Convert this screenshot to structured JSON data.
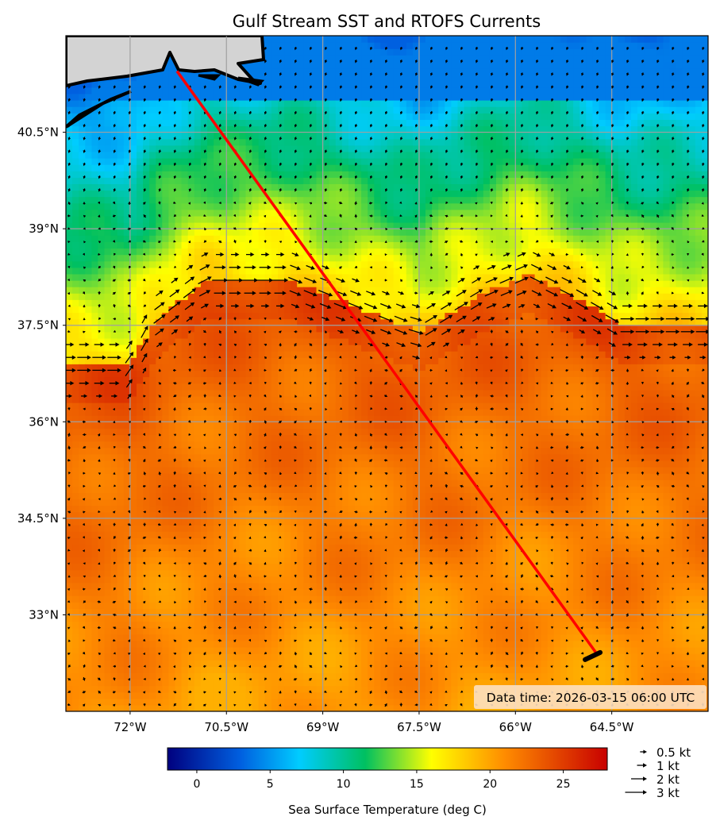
{
  "title": "Gulf Stream SST and RTOFS Currents",
  "map": {
    "lon_range": [
      -73.0,
      -63.0
    ],
    "lat_range": [
      31.5,
      42.0
    ],
    "lon_ticks": [
      {
        "value": -72,
        "label": "72°W"
      },
      {
        "value": -70.5,
        "label": "70.5°W"
      },
      {
        "value": -69,
        "label": "69°W"
      },
      {
        "value": -67.5,
        "label": "67.5°W"
      },
      {
        "value": -66,
        "label": "66°W"
      },
      {
        "value": -64.5,
        "label": "64.5°W"
      }
    ],
    "lat_ticks": [
      {
        "value": 40.5,
        "label": "40.5°N"
      },
      {
        "value": 39,
        "label": "39°N"
      },
      {
        "value": 37.5,
        "label": "37.5°N"
      },
      {
        "value": 36,
        "label": "36°N"
      },
      {
        "value": 34.5,
        "label": "34.5°N"
      },
      {
        "value": 33,
        "label": "33°N"
      }
    ],
    "grid": true,
    "land_color": "#d3d3d3",
    "route": {
      "color": "#ff0000",
      "start": {
        "lon": -71.27,
        "lat": 41.45
      },
      "end": {
        "lon": -64.73,
        "lat": 32.39
      }
    },
    "data_time": "Data time: 2026-03-15 06:00 UTC"
  },
  "colorbar": {
    "label": "Sea Surface Temperature (deg C)",
    "range": [
      -2,
      28
    ],
    "ticks": [
      "0",
      "5",
      "10",
      "15",
      "20",
      "25"
    ],
    "colormap": "jet",
    "stops": [
      {
        "v": -2,
        "c": "#00007f"
      },
      {
        "v": 3,
        "c": "#0060e0"
      },
      {
        "v": 7,
        "c": "#00ccff"
      },
      {
        "v": 11.5,
        "c": "#00c060"
      },
      {
        "v": 16,
        "c": "#ffff00"
      },
      {
        "v": 21,
        "c": "#ff8c00"
      },
      {
        "v": 28,
        "c": "#c80000"
      }
    ]
  },
  "quiver_legend": [
    {
      "speed": 0.5,
      "label": "0.5 kt"
    },
    {
      "speed": 1,
      "label": "1 kt"
    },
    {
      "speed": 2,
      "label": "2 kt"
    },
    {
      "speed": 3,
      "label": "3 kt"
    }
  ]
}
